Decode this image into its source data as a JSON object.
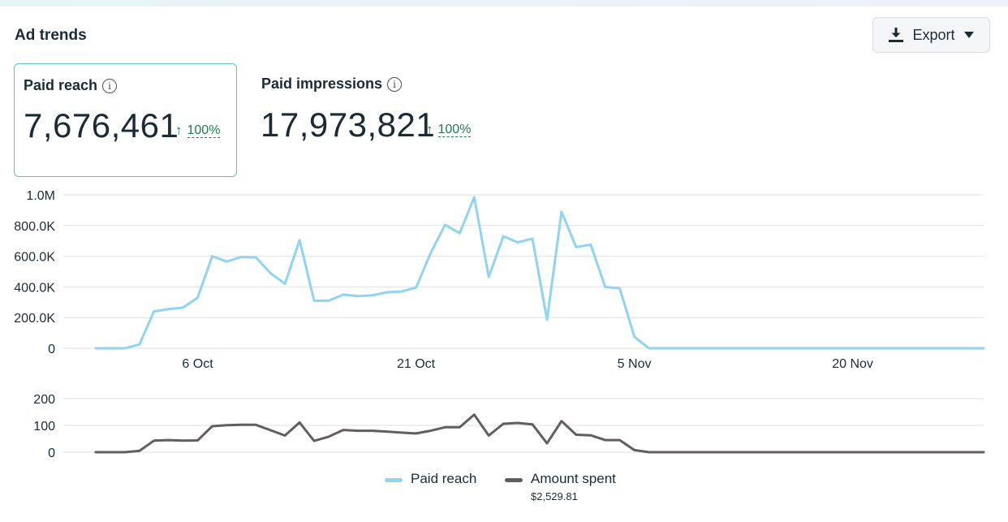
{
  "header": {
    "title": "Ad trends",
    "export_label": "Export"
  },
  "metrics": [
    {
      "label": "Paid reach",
      "value": "7,676,461",
      "delta": "100%",
      "selected": true
    },
    {
      "label": "Paid impressions",
      "value": "17,973,821",
      "delta": "100%",
      "selected": false
    }
  ],
  "colors": {
    "reach": "#8fd4f0",
    "spent": "#625e60",
    "delta_green": "#1f7a55",
    "selected_border": "#5bc0cc"
  },
  "icons": {
    "export": "download-icon",
    "dropdown": "caret-down-icon",
    "info": "info-icon",
    "trend": "arrow-up-icon"
  },
  "legend": {
    "reach_label": "Paid reach",
    "spent_label": "Amount spent",
    "spent_total": "$2,529.81"
  },
  "chart_data": [
    {
      "type": "line",
      "name": "reach",
      "x": [
        "29 Sep",
        "30 Sep",
        "1 Oct",
        "2 Oct",
        "3 Oct",
        "4 Oct",
        "5 Oct",
        "6 Oct",
        "7 Oct",
        "8 Oct",
        "9 Oct",
        "10 Oct",
        "11 Oct",
        "12 Oct",
        "13 Oct",
        "14 Oct",
        "15 Oct",
        "16 Oct",
        "17 Oct",
        "18 Oct",
        "19 Oct",
        "20 Oct",
        "21 Oct",
        "22 Oct",
        "23 Oct",
        "24 Oct",
        "25 Oct",
        "26 Oct",
        "27 Oct",
        "28 Oct",
        "29 Oct",
        "30 Oct",
        "31 Oct",
        "1 Nov",
        "2 Nov",
        "3 Nov",
        "4 Nov",
        "5 Nov",
        "6 Nov",
        "7 Nov",
        "8 Nov",
        "9 Nov",
        "10 Nov",
        "11 Nov",
        "12 Nov",
        "13 Nov",
        "14 Nov",
        "15 Nov",
        "16 Nov",
        "17 Nov",
        "18 Nov",
        "19 Nov",
        "20 Nov",
        "21 Nov",
        "22 Nov",
        "23 Nov",
        "24 Nov",
        "25 Nov",
        "26 Nov",
        "27 Nov",
        "28 Nov",
        "29 Nov"
      ],
      "xticks": [
        "6 Oct",
        "21 Oct",
        "5 Nov",
        "20 Nov"
      ],
      "yticks": [
        "0",
        "200.0K",
        "400.0K",
        "600.0K",
        "800.0K",
        "1.0M"
      ],
      "ylim": [
        0,
        1000000
      ],
      "series": [
        {
          "name": "Paid reach",
          "values": [
            0,
            0,
            0,
            25000,
            240000,
            255000,
            265000,
            330000,
            600000,
            565000,
            595000,
            592000,
            490000,
            420000,
            705000,
            310000,
            310000,
            350000,
            340000,
            345000,
            365000,
            370000,
            395000,
            620000,
            805000,
            750000,
            985000,
            465000,
            730000,
            690000,
            715000,
            185000,
            890000,
            660000,
            675000,
            400000,
            390000,
            75000,
            0,
            0,
            0,
            0,
            0,
            0,
            0,
            0,
            0,
            0,
            0,
            0,
            0,
            0,
            0,
            0,
            0,
            0,
            0,
            0,
            0,
            0,
            0,
            0
          ]
        }
      ]
    },
    {
      "type": "line",
      "name": "spent",
      "x": [
        "29 Sep",
        "30 Sep",
        "1 Oct",
        "2 Oct",
        "3 Oct",
        "4 Oct",
        "5 Oct",
        "6 Oct",
        "7 Oct",
        "8 Oct",
        "9 Oct",
        "10 Oct",
        "11 Oct",
        "12 Oct",
        "13 Oct",
        "14 Oct",
        "15 Oct",
        "16 Oct",
        "17 Oct",
        "18 Oct",
        "19 Oct",
        "20 Oct",
        "21 Oct",
        "22 Oct",
        "23 Oct",
        "24 Oct",
        "25 Oct",
        "26 Oct",
        "27 Oct",
        "28 Oct",
        "29 Oct",
        "30 Oct",
        "31 Oct",
        "1 Nov",
        "2 Nov",
        "3 Nov",
        "4 Nov",
        "5 Nov",
        "6 Nov",
        "7 Nov",
        "8 Nov",
        "9 Nov",
        "10 Nov",
        "11 Nov",
        "12 Nov",
        "13 Nov",
        "14 Nov",
        "15 Nov",
        "16 Nov",
        "17 Nov",
        "18 Nov",
        "19 Nov",
        "20 Nov",
        "21 Nov",
        "22 Nov",
        "23 Nov",
        "24 Nov",
        "25 Nov",
        "26 Nov",
        "27 Nov",
        "28 Nov",
        "29 Nov"
      ],
      "yticks": [
        "0",
        "100",
        "200"
      ],
      "ylim": [
        0,
        200
      ],
      "series": [
        {
          "name": "Amount spent",
          "values": [
            0,
            0,
            0,
            5,
            43,
            45,
            43,
            44,
            97,
            101,
            102,
            102,
            82,
            62,
            111,
            42,
            58,
            83,
            80,
            80,
            77,
            73,
            70,
            80,
            93,
            93,
            140,
            62,
            106,
            109,
            104,
            33,
            116,
            65,
            63,
            45,
            45,
            8,
            0,
            0,
            0,
            0,
            0,
            0,
            0,
            0,
            0,
            0,
            0,
            0,
            0,
            0,
            0,
            0,
            0,
            0,
            0,
            0,
            0,
            0,
            0,
            0
          ]
        }
      ]
    }
  ]
}
